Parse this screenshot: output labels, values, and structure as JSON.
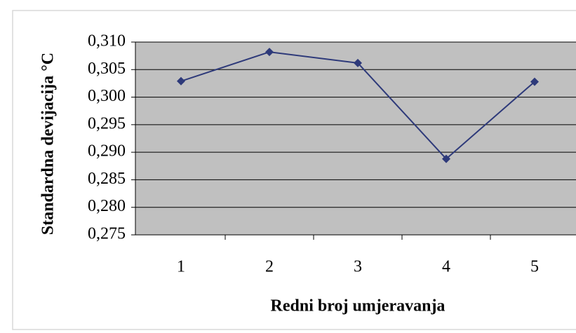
{
  "chart_data": {
    "type": "line",
    "xlabel": "Redni broj umjeravanja",
    "ylabel": "Standardna devijacija  °C",
    "categories": [
      "1",
      "2",
      "3",
      "4",
      "5"
    ],
    "values": [
      0.3029,
      0.3082,
      0.3062,
      0.2888,
      0.3028
    ],
    "color": "#2e3a7a",
    "plot_background": "#c0c0c0",
    "ylim": [
      0.275,
      0.31
    ],
    "yticks": [
      {
        "value": 0.275,
        "label": "0,275"
      },
      {
        "value": 0.28,
        "label": "0,280"
      },
      {
        "value": 0.285,
        "label": "0,285"
      },
      {
        "value": 0.29,
        "label": "0,290"
      },
      {
        "value": 0.295,
        "label": "0,295"
      },
      {
        "value": 0.3,
        "label": "0,300"
      },
      {
        "value": 0.305,
        "label": "0,305"
      },
      {
        "value": 0.31,
        "label": "0,310"
      }
    ],
    "grid": true
  }
}
